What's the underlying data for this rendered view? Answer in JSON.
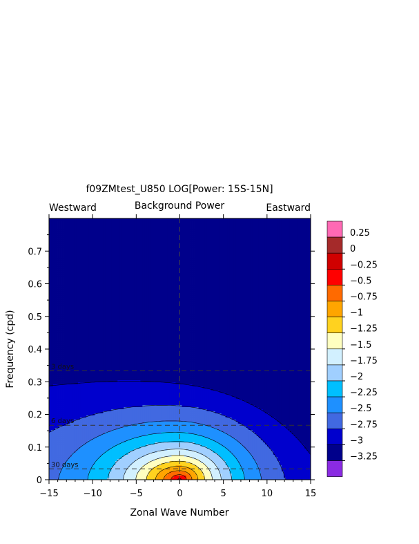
{
  "chart_data": {
    "type": "heatmap",
    "title": "f09ZMtest_U850 LOG[Power: 15S-15N]",
    "subtitle": "Background Power",
    "left_label": "Westward",
    "right_label": "Eastward",
    "xlabel": "Zonal Wave Number",
    "ylabel": "Frequency (cpd)",
    "xlim": [
      -15,
      15
    ],
    "ylim": [
      0,
      0.8
    ],
    "xticks": [
      -15,
      -10,
      -5,
      0,
      5,
      10,
      15
    ],
    "xtick_labels": [
      "−15",
      "−10",
      "−5",
      "0",
      "5",
      "10",
      "15"
    ],
    "yticks": [
      0,
      0.1,
      0.2,
      0.3,
      0.4,
      0.5,
      0.6,
      0.7
    ],
    "ytick_labels": [
      "0",
      "0.1",
      "0.2",
      "0.3",
      "0.4",
      "0.5",
      "0.6",
      "0.7"
    ],
    "period_lines": [
      {
        "label": "3 days",
        "frequency": 0.3333
      },
      {
        "label": "6 days",
        "frequency": 0.1667
      },
      {
        "label": "30 days",
        "frequency": 0.0333
      }
    ],
    "colorbar": {
      "levels": [
        0.25,
        0,
        -0.25,
        -0.5,
        -0.75,
        -1,
        -1.25,
        -1.5,
        -1.75,
        -2,
        -2.25,
        -2.5,
        -2.75,
        -3,
        -3.25
      ],
      "level_labels": [
        "0.25",
        "0",
        "−0.25",
        "−0.5",
        "−0.75",
        "−1",
        "−1.25",
        "−1.5",
        "−1.75",
        "−2",
        "−2.25",
        "−2.5",
        "−2.75",
        "−3",
        "−3.25"
      ],
      "colors": [
        "#ff69b4",
        "#a52a2a",
        "#d00000",
        "#ff0000",
        "#ff6a00",
        "#ffa500",
        "#ffd21f",
        "#ffffc0",
        "#d2f0ff",
        "#a0cfff",
        "#00bfff",
        "#1e90ff",
        "#4169e1",
        "#0000cd",
        "#00008b",
        "#8a2be2"
      ]
    },
    "contour_levels": [
      -3,
      -2.75,
      -2.5,
      -2.25,
      -2,
      -1.75,
      -1.5,
      -1.25,
      -1,
      -0.75,
      -0.5,
      -0.25
    ],
    "field_model": {
      "peak_value": -0.15,
      "peak_wavenumber": 0,
      "peak_frequency": 0.0
    }
  }
}
